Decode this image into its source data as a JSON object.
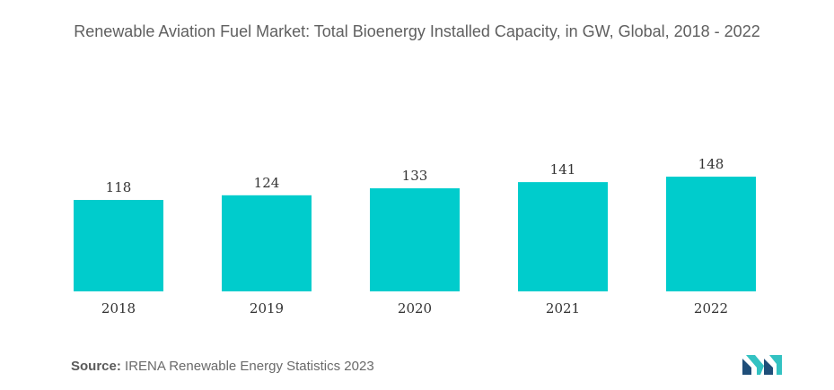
{
  "chart_data": {
    "type": "bar",
    "title": "Renewable Aviation Fuel Market: Total Bioenergy Installed Capacity, in GW, Global, 2018 - 2022",
    "categories": [
      "2018",
      "2019",
      "2020",
      "2021",
      "2022"
    ],
    "values": [
      118,
      124,
      133,
      141,
      148
    ],
    "value_labels": [
      "118",
      "124",
      "133",
      "141",
      "148"
    ],
    "xlabel": "",
    "ylabel": "",
    "ylim": [
      0,
      160
    ],
    "grid": false,
    "legend": "none",
    "bar_color": "#00cccc"
  },
  "source": {
    "label": "Source:",
    "text": "IRENA Renewable Energy Statistics 2023"
  },
  "logo": {
    "icon": "mordor-intelligence-logo-icon",
    "colors": [
      "#1f4e79",
      "#33c2c2"
    ]
  }
}
